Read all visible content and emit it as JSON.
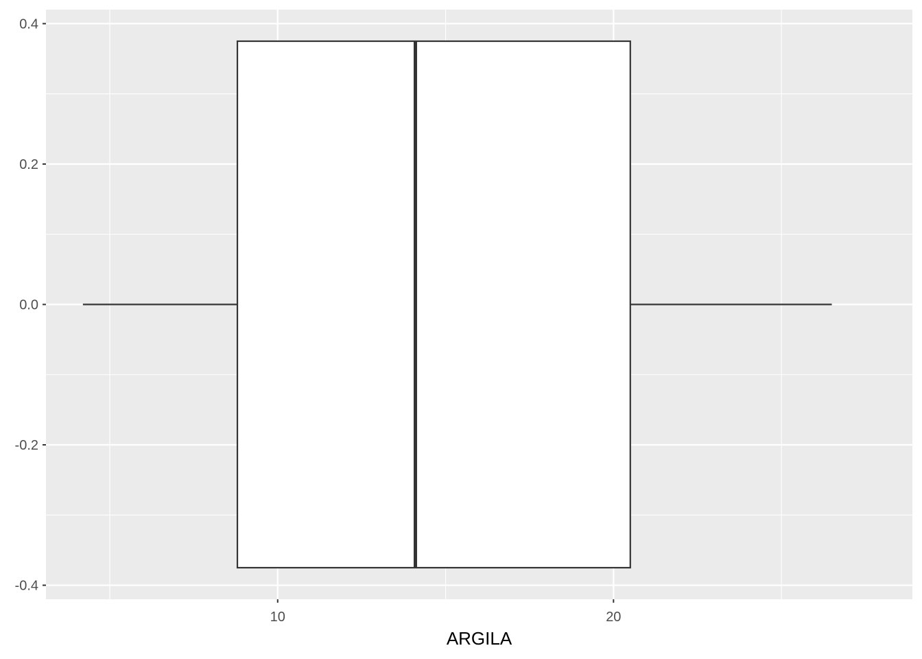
{
  "chart_data": {
    "type": "boxplot",
    "orientation": "horizontal",
    "xlabel": "ARGILA",
    "ylabel": "",
    "xlim": [
      3.1,
      28.9
    ],
    "ylim": [
      -0.42,
      0.42
    ],
    "x_ticks": [
      10,
      20
    ],
    "x_tick_labels": [
      "10",
      "20"
    ],
    "y_ticks": [
      -0.4,
      -0.2,
      0.0,
      0.2,
      0.4
    ],
    "y_tick_labels": [
      "-0.4",
      "-0.2",
      "0.0",
      "0.2",
      "0.4"
    ],
    "x_minor_breaks": [
      5,
      15,
      25
    ],
    "y_minor_breaks": [
      -0.3,
      -0.1,
      0.1,
      0.3
    ],
    "box": {
      "min": 4.2,
      "q1": 8.8,
      "median": 14.1,
      "q3": 20.5,
      "max": 26.5,
      "y_center": 0.0,
      "half_width": 0.375
    },
    "grid": true,
    "panel_background": "#ebebeb",
    "grid_color": "#ffffff",
    "box_fill": "#ffffff",
    "line_color": "#333333"
  }
}
